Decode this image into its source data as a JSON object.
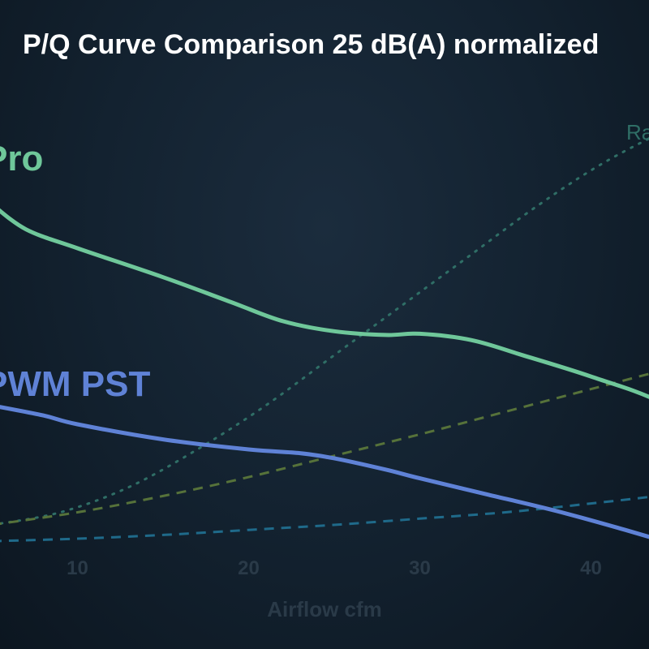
{
  "chart_data": {
    "type": "line",
    "title": "P/Q Curve Comparison 25 dB(A) normalized",
    "xlabel": "Airflow cfm",
    "ylabel": "",
    "xlim": [
      5,
      48
    ],
    "ylim": [
      0,
      3.5
    ],
    "x_ticks": [
      "10",
      "20",
      "30",
      "40"
    ],
    "grid": false,
    "series": [
      {
        "name": "Pro",
        "color": "#6fc79a",
        "style": "solid",
        "x": [
          5,
          7,
          10,
          15,
          19,
          22,
          25,
          28,
          30,
          33,
          36,
          40,
          44,
          48
        ],
        "y": [
          2.75,
          2.55,
          2.4,
          2.17,
          1.97,
          1.82,
          1.74,
          1.71,
          1.72,
          1.67,
          1.55,
          1.38,
          1.18,
          0.85
        ]
      },
      {
        "name": "PWM PST",
        "color": "#5f82d6",
        "style": "solid",
        "x": [
          5,
          8,
          10,
          15,
          20,
          23,
          25,
          28,
          30,
          34,
          38,
          42,
          46
        ],
        "y": [
          1.15,
          1.07,
          1.0,
          0.88,
          0.8,
          0.77,
          0.73,
          0.64,
          0.57,
          0.44,
          0.31,
          0.16,
          0.0
        ]
      },
      {
        "name": "Ra",
        "color": "#2f6e66",
        "style": "dotted",
        "x": [
          5,
          9,
          13,
          17,
          21,
          25,
          29,
          33,
          37,
          41,
          46
        ],
        "y": [
          0.2,
          0.3,
          0.5,
          0.8,
          1.15,
          1.55,
          1.95,
          2.35,
          2.75,
          3.1,
          3.45
        ]
      },
      {
        "name": "",
        "color": "#56723a",
        "style": "dashed",
        "x": [
          5,
          10,
          15,
          20,
          25,
          30,
          35,
          40,
          45,
          48
        ],
        "y": [
          0.2,
          0.3,
          0.43,
          0.58,
          0.75,
          0.92,
          1.1,
          1.28,
          1.46,
          1.58
        ]
      },
      {
        "name": "",
        "color": "#1f6a8a",
        "style": "dashed",
        "x": [
          5,
          10,
          15,
          20,
          25,
          30,
          35,
          40,
          45,
          48
        ],
        "y": [
          0.07,
          0.09,
          0.12,
          0.16,
          0.2,
          0.25,
          0.3,
          0.37,
          0.45,
          0.52
        ]
      }
    ]
  }
}
